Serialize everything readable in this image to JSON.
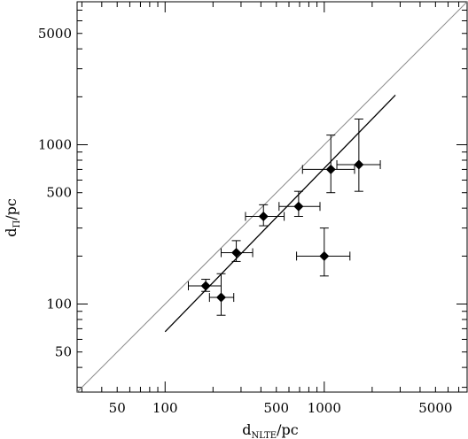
{
  "chart_data": {
    "type": "scatter",
    "title": "",
    "xlabel": {
      "base": "d",
      "subscript": "NLTE",
      "unit": "/pc"
    },
    "ylabel": {
      "base": "d",
      "subscript": "Π",
      "unit": "/pc"
    },
    "xscale": "log",
    "yscale": "log",
    "xlim": [
      28,
      7900
    ],
    "ylim": [
      28,
      7900
    ],
    "grid": false,
    "legend": "none",
    "x_tick_labels": [
      {
        "value": 50,
        "label": "50"
      },
      {
        "value": 100,
        "label": "100"
      },
      {
        "value": 500,
        "label": "500"
      },
      {
        "value": 1000,
        "label": "1000"
      },
      {
        "value": 5000,
        "label": "5000"
      }
    ],
    "y_tick_labels": [
      {
        "value": 50,
        "label": "50"
      },
      {
        "value": 100,
        "label": "100"
      },
      {
        "value": 500,
        "label": "500"
      },
      {
        "value": 1000,
        "label": "1000"
      },
      {
        "value": 5000,
        "label": "5000"
      }
    ],
    "series": [
      {
        "points": [
          {
            "x": 180,
            "y": 130,
            "xlo": 140,
            "xhi": 225,
            "ylo": 120,
            "yhi": 143
          },
          {
            "x": 225,
            "y": 110,
            "xlo": 190,
            "xhi": 270,
            "ylo": 85,
            "yhi": 155
          },
          {
            "x": 280,
            "y": 210,
            "xlo": 225,
            "xhi": 355,
            "ylo": 185,
            "yhi": 250
          },
          {
            "x": 415,
            "y": 355,
            "xlo": 320,
            "xhi": 560,
            "ylo": 310,
            "yhi": 420
          },
          {
            "x": 690,
            "y": 410,
            "xlo": 520,
            "xhi": 940,
            "ylo": 355,
            "yhi": 510
          },
          {
            "x": 1000,
            "y": 200,
            "xlo": 670,
            "xhi": 1450,
            "ylo": 150,
            "yhi": 300
          },
          {
            "x": 1100,
            "y": 700,
            "xlo": 730,
            "xhi": 1550,
            "ylo": 500,
            "yhi": 1150
          },
          {
            "x": 1650,
            "y": 750,
            "xlo": 1200,
            "xhi": 2250,
            "ylo": 510,
            "yhi": 1450
          }
        ]
      }
    ],
    "lines": [
      {
        "style": "one-to-one",
        "x": [
          28,
          7900
        ],
        "y": [
          28,
          7900
        ],
        "color": "#888888"
      },
      {
        "style": "fit",
        "x": [
          100,
          2800
        ],
        "y": [
          67,
          2050
        ],
        "color": "#000000"
      }
    ]
  }
}
